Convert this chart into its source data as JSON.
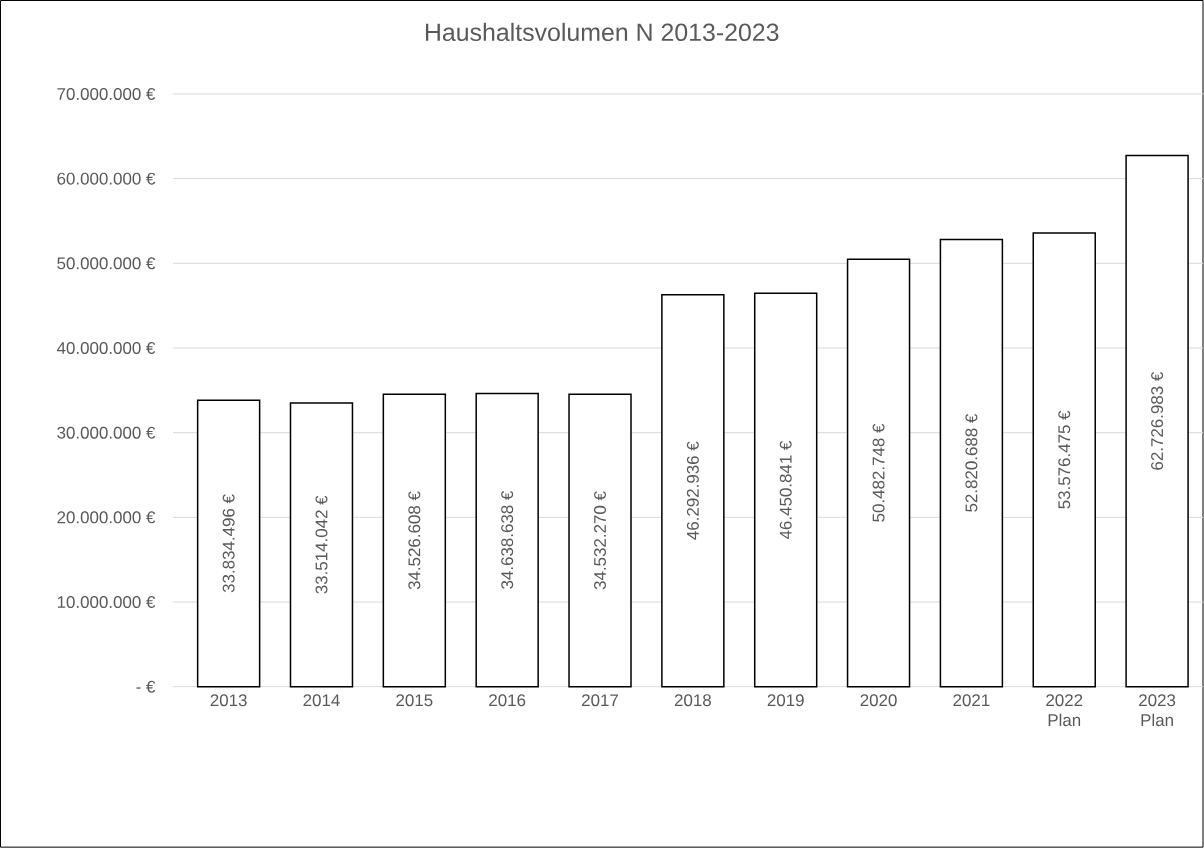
{
  "chart_data": {
    "type": "bar",
    "title": "Haushaltsvolumen N 2013-2023",
    "categories": [
      "2013",
      "2014",
      "2015",
      "2016",
      "2017",
      "2018",
      "2019",
      "2020",
      "2021",
      "2022 Plan",
      "2023 Plan"
    ],
    "values": [
      33834496,
      33514042,
      34526608,
      34638638,
      34532270,
      46292936,
      46450841,
      50482748,
      52820688,
      53576475,
      62726983
    ],
    "value_labels": [
      "33.834.496 €",
      "33.514.042 €",
      "34.526.608 €",
      "34.638.638 €",
      "34.532.270 €",
      "46.292.936 €",
      "46.450.841 €",
      "50.482.748 €",
      "52.820.688 €",
      "53.576.475 €",
      "62.726.983 €"
    ],
    "color": "#ffffff",
    "ylim": [
      0,
      70000000
    ],
    "yticks": [
      {
        "value": 0,
        "label": "-   €"
      },
      {
        "value": 10000000,
        "label": "10.000.000 €"
      },
      {
        "value": 20000000,
        "label": "20.000.000 €"
      },
      {
        "value": 30000000,
        "label": "30.000.000 €"
      },
      {
        "value": 40000000,
        "label": "40.000.000 €"
      },
      {
        "value": 50000000,
        "label": "50.000.000 €"
      },
      {
        "value": 60000000,
        "label": "60.000.000 €"
      },
      {
        "value": 70000000,
        "label": "70.000.000 €"
      }
    ],
    "grid": "y"
  }
}
